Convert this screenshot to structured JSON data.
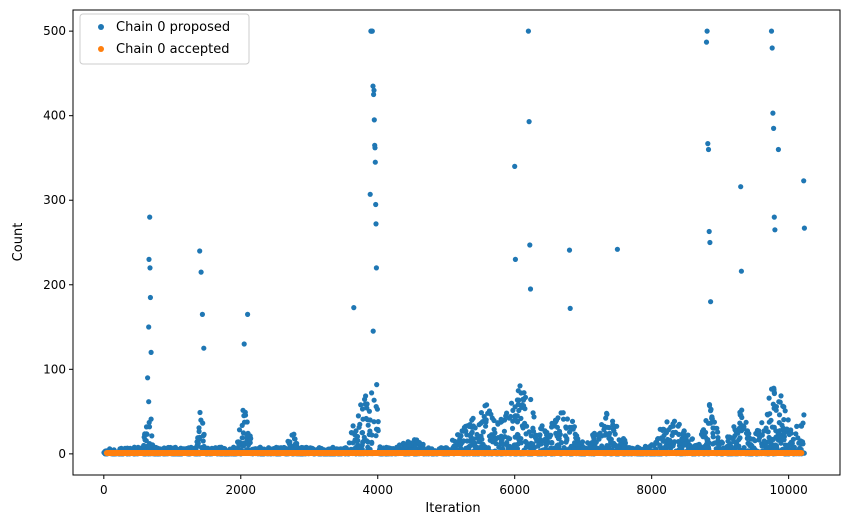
{
  "chart_data": {
    "type": "scatter",
    "title": "",
    "xlabel": "Iteration",
    "ylabel": "Count",
    "xlim": [
      -450,
      10750
    ],
    "ylim": [
      -25,
      525
    ],
    "xticks": [
      0,
      2000,
      4000,
      6000,
      8000,
      10000
    ],
    "yticks": [
      0,
      100,
      200,
      300,
      400,
      500
    ],
    "grid": false,
    "legend_position": "top-left",
    "series": [
      {
        "name": "Chain 0 proposed",
        "color": "#1f77b4",
        "x": [
          640,
          655,
          660,
          670,
          675,
          680,
          690,
          1400,
          1420,
          1440,
          1460,
          2100,
          2050,
          3650,
          3890,
          3900,
          3910,
          3920,
          3930,
          3940,
          3945,
          3950,
          3955,
          3960,
          3965,
          3970,
          3975,
          3980,
          6000,
          6010,
          6200,
          6210,
          6220,
          6230,
          6800,
          6810,
          7500,
          8800,
          8810,
          8820,
          8830,
          8840,
          8850,
          8860,
          9300,
          9310,
          9750,
          9760,
          9770,
          9780,
          9790,
          9800,
          9850,
          10220,
          10230
        ],
        "y": [
          90,
          150,
          230,
          280,
          220,
          185,
          120,
          240,
          215,
          165,
          125,
          165,
          130,
          173,
          307,
          500,
          500,
          500,
          435,
          425,
          430,
          395,
          365,
          362,
          345,
          295,
          272,
          220,
          340,
          230,
          500,
          393,
          247,
          195,
          241,
          172,
          242,
          487,
          500,
          367,
          360,
          263,
          250,
          180,
          316,
          216,
          500,
          480,
          403,
          385,
          280,
          265,
          360,
          323,
          267
        ]
      },
      {
        "name": "Chain 0 accepted",
        "color": "#ff7f0e",
        "x": [
          0,
          10230
        ],
        "y": [
          0,
          1
        ]
      }
    ]
  }
}
